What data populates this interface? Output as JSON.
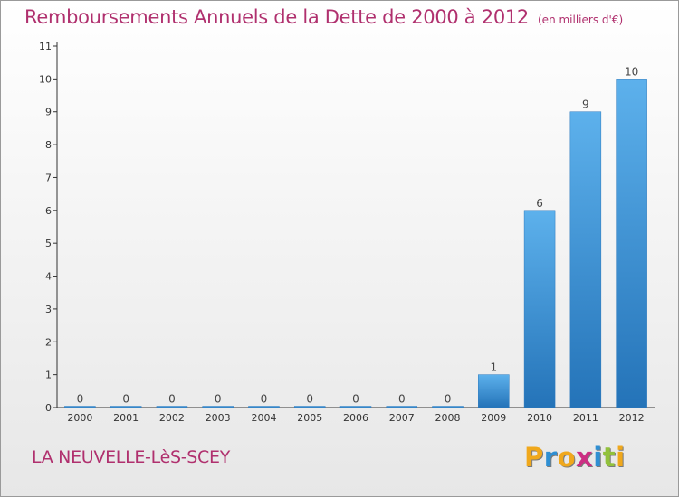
{
  "chart_data": {
    "type": "bar",
    "title": "Remboursements Annuels de la Dette de 2000 à 2012",
    "subtitle": "(en milliers d'€)",
    "categories": [
      "2000",
      "2001",
      "2002",
      "2003",
      "2004",
      "2005",
      "2006",
      "2007",
      "2008",
      "2009",
      "2010",
      "2011",
      "2012"
    ],
    "values": [
      0,
      0,
      0,
      0,
      0,
      0,
      0,
      0,
      0,
      1,
      6,
      9,
      10
    ],
    "data_labels": [
      "0",
      "0",
      "0",
      "0",
      "0",
      "0",
      "0",
      "0",
      "0",
      "1",
      "6",
      "9",
      "10"
    ],
    "ylim": [
      0,
      11
    ],
    "yticks": [
      0,
      1,
      2,
      3,
      4,
      5,
      6,
      7,
      8,
      9,
      10,
      11
    ],
    "xlabel": "",
    "ylabel": "",
    "grid": false,
    "bar_color": "#3d8fd6"
  },
  "footer": {
    "commune": "LA NEUVELLE-LèS-SCEY",
    "logo_letters": [
      "P",
      "r",
      "o",
      "x",
      "i",
      "t",
      "i"
    ],
    "logo_colors": [
      "#f0a81c",
      "#2f8fd3",
      "#f0a81c",
      "#cc2e83",
      "#2f8fd3",
      "#92c13c",
      "#f0a81c"
    ]
  }
}
